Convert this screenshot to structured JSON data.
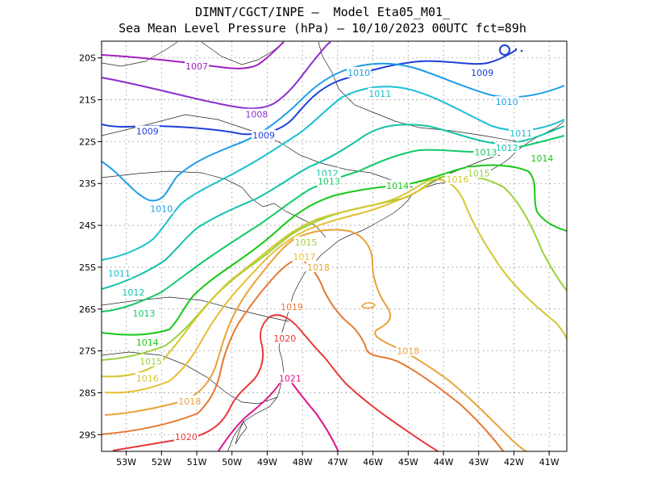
{
  "title": {
    "line1": "DIMNT/CGCT/INPE —  Model Eta05_M01_",
    "line2": "Sea Mean Level Pressure (hPa) — 10/10/2023 00UTC fct=89h"
  },
  "map": {
    "lon_range": [
      -53.7,
      -40.5
    ],
    "lat_range": [
      -29.4,
      -19.6
    ],
    "y_ticks": [
      "20S",
      "21S",
      "22S",
      "23S",
      "24S",
      "25S",
      "26S",
      "27S",
      "28S",
      "29S"
    ],
    "x_ticks": [
      "53W",
      "52W",
      "51W",
      "50W",
      "49W",
      "48W",
      "47W",
      "46W",
      "45W",
      "44W",
      "43W",
      "42W",
      "41W"
    ],
    "isobars": [
      {
        "value": "1007",
        "color": "#a020c0",
        "label": {
          "text": "1007",
          "lon": -51.0,
          "lat": -20.2
        }
      },
      {
        "value": "1008",
        "color": "#8a30d0",
        "label": {
          "text": "1008",
          "lon": -49.3,
          "lat": -21.35
        }
      },
      {
        "value": "1009",
        "color": "#1f3fd8",
        "label": {
          "text": "1009",
          "lon": -52.4,
          "lat": -21.75
        }
      },
      {
        "value": "1009",
        "color": "#1f3fd8",
        "label": {
          "text": "1009",
          "lon": -49.1,
          "lat": -21.85
        }
      },
      {
        "value": "1009",
        "color": "#1f3fd8",
        "label": {
          "text": "1009",
          "lon": -42.9,
          "lat": -20.35
        }
      },
      {
        "value": "1010",
        "color": "#1e9de6",
        "label": {
          "text": "1010",
          "lon": -46.4,
          "lat": -20.35
        }
      },
      {
        "value": "1010",
        "color": "#1e9de6",
        "label": {
          "text": "1010",
          "lon": -52.0,
          "lat": -23.6
        }
      },
      {
        "value": "1010",
        "color": "#1e9de6",
        "label": {
          "text": "1010",
          "lon": -42.2,
          "lat": -21.05
        }
      },
      {
        "value": "1011",
        "color": "#18c0d0",
        "label": {
          "text": "1011",
          "lon": -45.8,
          "lat": -20.85
        }
      },
      {
        "value": "1011",
        "color": "#18c0d0",
        "label": {
          "text": "1011",
          "lon": -53.2,
          "lat": -25.15
        }
      },
      {
        "value": "1011",
        "color": "#18c0d0",
        "label": {
          "text": "1011",
          "lon": -41.8,
          "lat": -21.8
        }
      },
      {
        "value": "1012",
        "color": "#15c3a8",
        "label": {
          "text": "1012",
          "lon": -47.3,
          "lat": -22.75
        }
      },
      {
        "value": "1012",
        "color": "#15c3a8",
        "label": {
          "text": "1012",
          "lon": -52.8,
          "lat": -25.6
        }
      },
      {
        "value": "1012",
        "color": "#15c3a8",
        "label": {
          "text": "1012",
          "lon": -42.2,
          "lat": -22.15
        }
      },
      {
        "value": "1013",
        "color": "#12c96a",
        "label": {
          "text": "1013",
          "lon": -47.25,
          "lat": -22.95
        }
      },
      {
        "value": "1013",
        "color": "#12c96a",
        "label": {
          "text": "1013",
          "lon": -52.5,
          "lat": -26.1
        }
      },
      {
        "value": "1013",
        "color": "#12c96a",
        "label": {
          "text": "1013",
          "lon": -42.8,
          "lat": -22.25
        }
      },
      {
        "value": "1014",
        "color": "#18c818",
        "label": {
          "text": "1014",
          "lon": -45.3,
          "lat": -23.05
        }
      },
      {
        "value": "1014",
        "color": "#18c818",
        "label": {
          "text": "1014",
          "lon": -52.4,
          "lat": -26.8
        }
      },
      {
        "value": "1014",
        "color": "#18c818",
        "label": {
          "text": "1014",
          "lon": -41.2,
          "lat": -22.4
        }
      },
      {
        "value": "1015",
        "color": "#9ad23a",
        "label": {
          "text": "1015",
          "lon": -47.9,
          "lat": -24.4
        }
      },
      {
        "value": "1015",
        "color": "#9ad23a",
        "label": {
          "text": "1015",
          "lon": -52.3,
          "lat": -27.25
        }
      },
      {
        "value": "1015",
        "color": "#9ad23a",
        "label": {
          "text": "1015",
          "lon": -43.0,
          "lat": -22.75
        }
      },
      {
        "value": "1016",
        "color": "#d4c830",
        "label": {
          "text": "1016",
          "lon": -52.4,
          "lat": -27.65
        }
      },
      {
        "value": "1016",
        "color": "#d4c830",
        "label": {
          "text": "1016",
          "lon": -43.6,
          "lat": -22.9
        }
      },
      {
        "value": "1017",
        "color": "#e6be32",
        "label": {
          "text": "1017",
          "lon": -47.95,
          "lat": -24.75
        }
      },
      {
        "value": "1018",
        "color": "#e8a238",
        "label": {
          "text": "1018",
          "lon": -47.55,
          "lat": -25.0
        }
      },
      {
        "value": "1018",
        "color": "#e8a238",
        "label": {
          "text": "1018",
          "lon": -51.2,
          "lat": -28.2
        }
      },
      {
        "value": "1018",
        "color": "#e8a238",
        "label": {
          "text": "1018",
          "lon": -45.0,
          "lat": -27.0
        }
      },
      {
        "value": "1019",
        "color": "#e67830",
        "label": {
          "text": "1019",
          "lon": -48.3,
          "lat": -25.95
        }
      },
      {
        "value": "1020",
        "color": "#e83838",
        "label": {
          "text": "1020",
          "lon": -48.5,
          "lat": -26.7
        }
      },
      {
        "value": "1020",
        "color": "#e83838",
        "label": {
          "text": "1020",
          "lon": -51.3,
          "lat": -29.05
        }
      },
      {
        "value": "1021",
        "color": "#e0148c",
        "label": {
          "text": "1021",
          "lon": -48.35,
          "lat": -27.65
        }
      }
    ]
  }
}
